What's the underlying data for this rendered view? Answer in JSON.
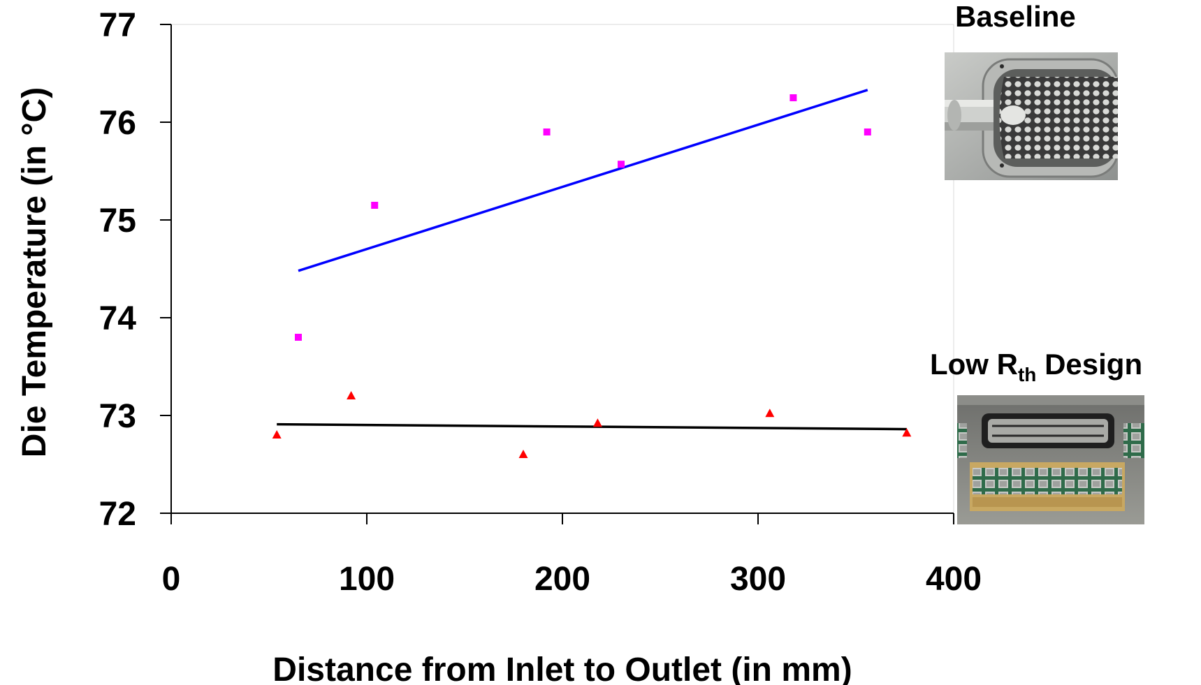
{
  "chart_data": {
    "type": "scatter",
    "title": "",
    "xlabel": "Distance from Inlet to Outlet (in mm)",
    "ylabel": "Die Temperature (in °C)",
    "xlim": [
      0,
      400
    ],
    "ylim": [
      72,
      77
    ],
    "xticks": [
      "0",
      "100",
      "200",
      "300",
      "400"
    ],
    "yticks": [
      "72",
      "73",
      "74",
      "75",
      "76",
      "77"
    ],
    "grid": false,
    "legend": "none",
    "series": [
      {
        "color": "#ff00ff",
        "marker": "square",
        "points": [
          [
            65,
            73.8
          ],
          [
            104,
            75.15
          ],
          [
            192,
            75.9
          ],
          [
            230,
            75.57
          ],
          [
            318,
            76.25
          ],
          [
            356,
            75.9
          ]
        ],
        "trend": {
          "color": "#0000ff",
          "x": [
            65,
            356
          ],
          "y": [
            74.48,
            76.33
          ]
        }
      },
      {
        "color": "#ff0000",
        "marker": "triangle",
        "points": [
          [
            54,
            72.8
          ],
          [
            92,
            73.2
          ],
          [
            180,
            72.6
          ],
          [
            218,
            72.92
          ],
          [
            306,
            73.02
          ],
          [
            376,
            72.82
          ]
        ],
        "trend": {
          "color": "#000000",
          "x": [
            54,
            376
          ],
          "y": [
            72.91,
            72.86
          ]
        }
      }
    ]
  },
  "photos": {
    "baseline": {
      "label": "Baseline"
    },
    "low_rth": {
      "label_main": "Low R",
      "label_sub": "th",
      "label_tail": " Design"
    }
  }
}
